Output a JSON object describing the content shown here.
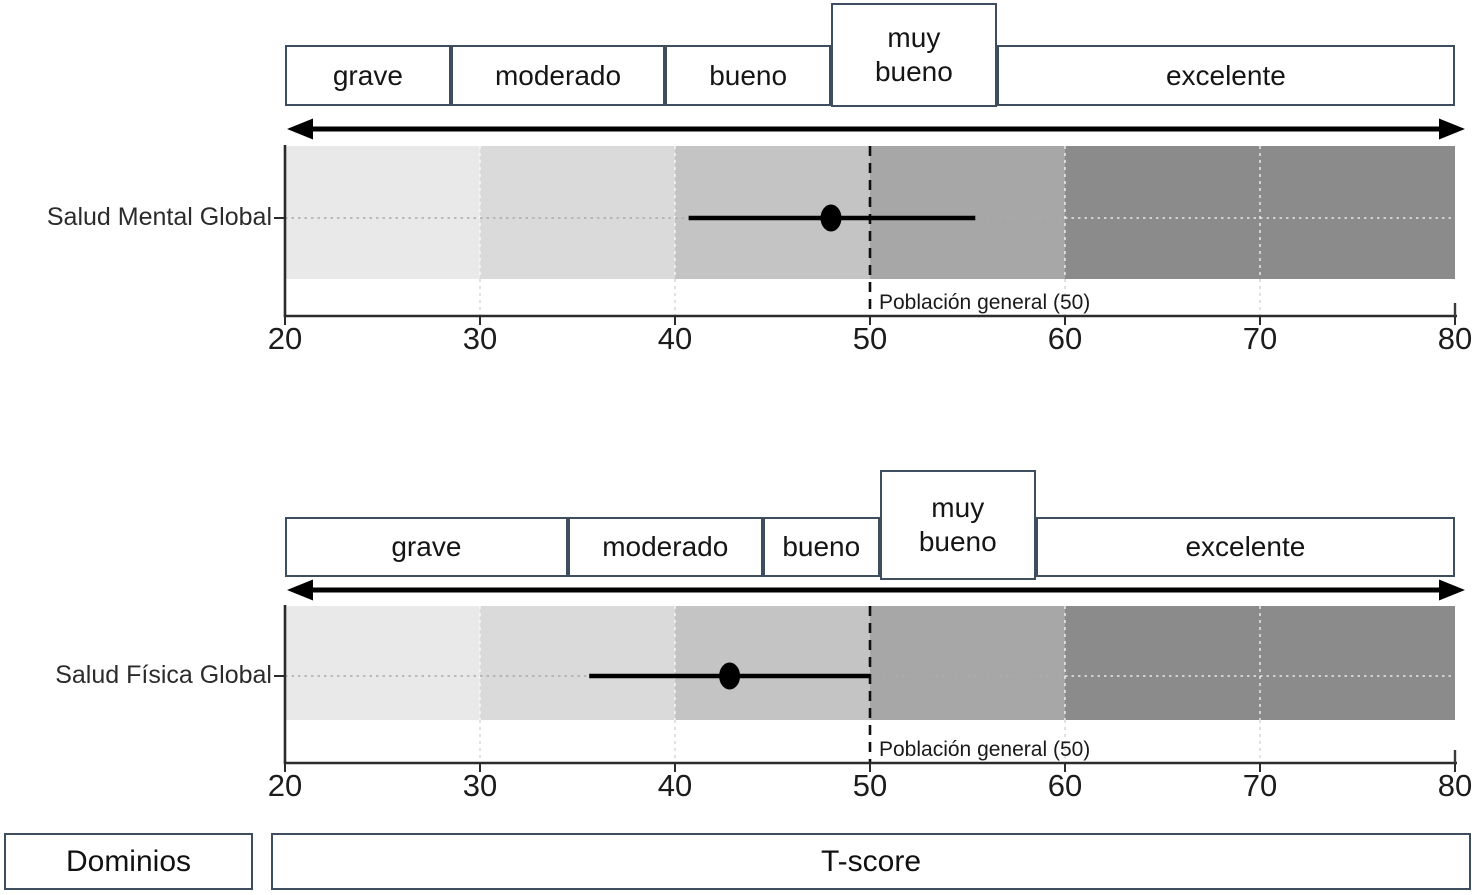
{
  "footer": {
    "domains_label": "Dominios",
    "score_label": "T-score"
  },
  "chart_data": {
    "type": "scatter",
    "title": "",
    "xlabel": "T-score",
    "ylabel": "Dominios",
    "xlim": [
      20,
      80
    ],
    "x_ticks": [
      20,
      30,
      40,
      50,
      60,
      70,
      80
    ],
    "grid": "dotted vertical at 30,40,60,70 and dotted horizontal at row center",
    "reference_line": {
      "x": 50,
      "label": "Población general (50)"
    },
    "zone_shading": [
      {
        "range": [
          20,
          30
        ],
        "color": "#e9e9e9"
      },
      {
        "range": [
          30,
          40
        ],
        "color": "#dadada"
      },
      {
        "range": [
          40,
          50
        ],
        "color": "#c4c4c4"
      },
      {
        "range": [
          50,
          60
        ],
        "color": "#a7a7a7"
      },
      {
        "range": [
          60,
          80
        ],
        "color": "#8b8b8b"
      }
    ],
    "rows": [
      {
        "domain": "Salud Mental Global",
        "t_score": 48,
        "ci": [
          40.7,
          55.4
        ],
        "categories": [
          {
            "label": "grave",
            "range": [
              20,
              28.5
            ]
          },
          {
            "label": "moderado",
            "range": [
              28.5,
              39.5
            ]
          },
          {
            "label": "bueno",
            "range": [
              39.5,
              48
            ]
          },
          {
            "label": "muy bueno",
            "range": [
              48,
              56.5
            ],
            "emphasized": true
          },
          {
            "label": "excelente",
            "range": [
              56.5,
              80
            ]
          }
        ]
      },
      {
        "domain": "Salud Física Global",
        "t_score": 42.8,
        "ci": [
          35.6,
          50
        ],
        "categories": [
          {
            "label": "grave",
            "range": [
              20,
              34.5
            ]
          },
          {
            "label": "moderado",
            "range": [
              34.5,
              44.5
            ]
          },
          {
            "label": "bueno",
            "range": [
              44.5,
              50.5
            ]
          },
          {
            "label": "muy bueno",
            "range": [
              50.5,
              58.5
            ],
            "emphasized": true
          },
          {
            "label": "excelente",
            "range": [
              58.5,
              80
            ]
          }
        ]
      }
    ],
    "colors": {
      "marker": "#000000",
      "arrow": "#000000",
      "box_border": "#3f4e5e",
      "reference_line": "#0f0f0f",
      "axis": "#2b2b2b"
    }
  }
}
